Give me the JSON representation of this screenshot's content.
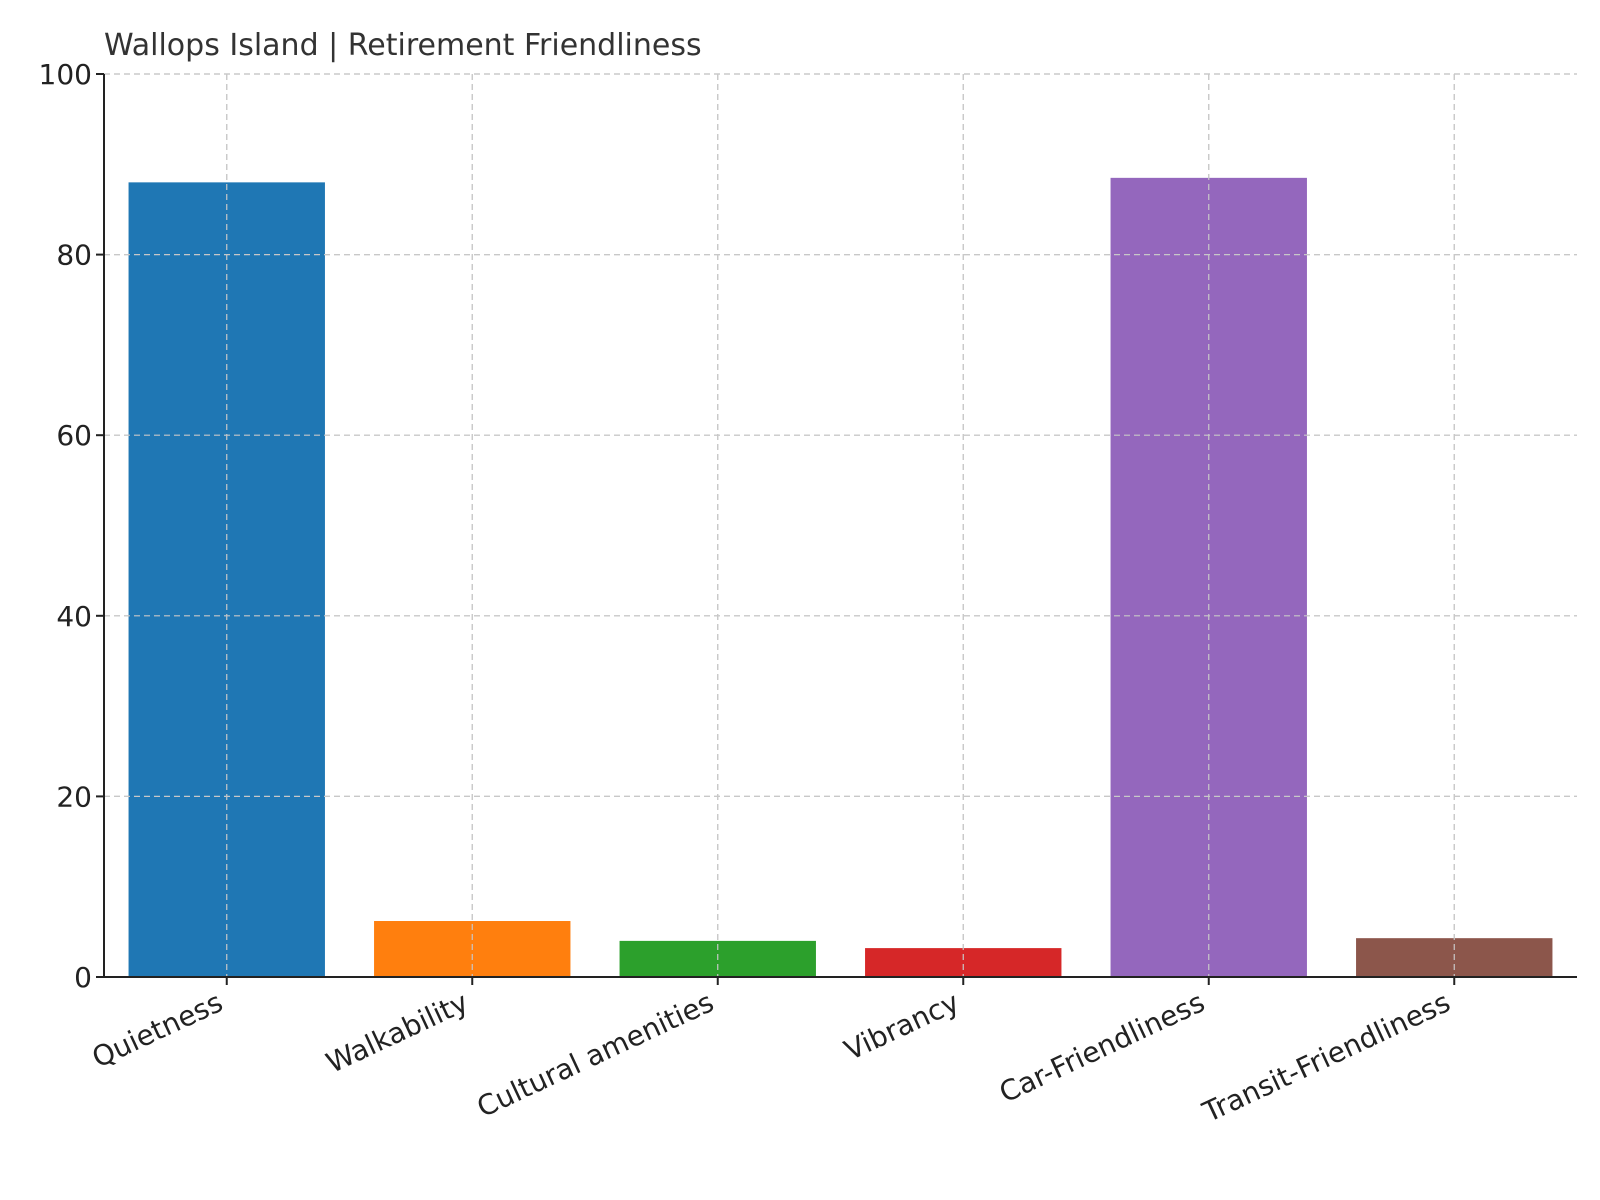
{
  "chart_data": {
    "type": "bar",
    "title": "Wallops Island | Retirement Friendliness",
    "xlabel": "",
    "ylabel": "",
    "categories": [
      "Quietness",
      "Walkability",
      "Cultural amenities",
      "Vibrancy",
      "Car-Friendliness",
      "Transit-Friendliness"
    ],
    "values": [
      88.0,
      6.2,
      4.0,
      3.2,
      88.5,
      4.3
    ],
    "colors": [
      "#1f77b4",
      "#ff7f0e",
      "#2ca02c",
      "#d62728",
      "#9467bd",
      "#8c564b"
    ],
    "ylim": [
      0,
      100
    ],
    "yticks": [
      0,
      20,
      40,
      60,
      80,
      100
    ],
    "grid": true,
    "legend": "none"
  }
}
